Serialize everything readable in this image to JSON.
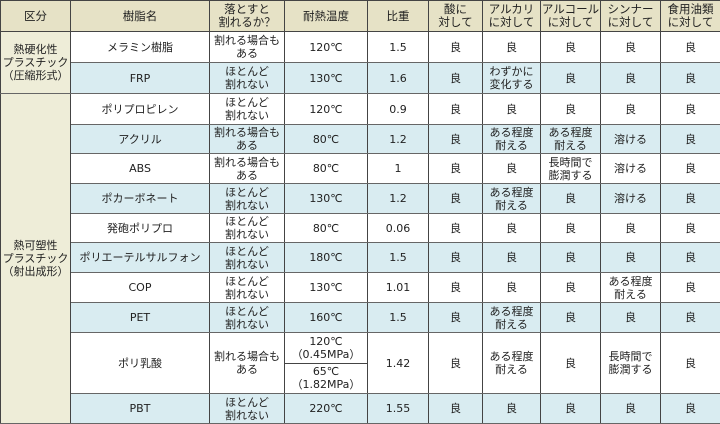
{
  "headers": [
    "区分",
    "樹脂名",
    "落とすと\n割れるか？",
    "耐熱温度",
    "比重",
    "酸に\n対して",
    "アルカリ\nに対して",
    "アルコール\nに対して",
    "シンナー\nに対して",
    "食用油類\nに対して"
  ],
  "categories": [
    {
      "label": "熱硬化性\nプラスチック\n（圧縮形式）"
    },
    {
      "label": "熱可塑性\nプラスチック\n（射出成形）"
    }
  ],
  "rows": [
    {
      "name": "メラミン樹脂",
      "drop": "割れる場合も\nある",
      "temp": "120℃",
      "sg": "1.5",
      "acid": "良",
      "alkali": "良",
      "alcohol": "良",
      "thinner": "良",
      "oil": "良"
    },
    {
      "name": "FRP",
      "drop": "ほとんど\n割れない",
      "temp": "130℃",
      "sg": "1.6",
      "acid": "良",
      "alkali": "わずかに\n変化する",
      "alcohol": "良",
      "thinner": "良",
      "oil": "良"
    },
    {
      "name": "ポリプロピレン",
      "drop": "ほとんど\n割れない",
      "temp": "120℃",
      "sg": "0.9",
      "acid": "良",
      "alkali": "良",
      "alcohol": "良",
      "thinner": "良",
      "oil": "良"
    },
    {
      "name": "アクリル",
      "drop": "割れる場合も\nある",
      "temp": "80℃",
      "sg": "1.2",
      "acid": "良",
      "alkali": "ある程度\n耐える",
      "alcohol": "ある程度\n耐える",
      "thinner": "溶ける",
      "oil": "良"
    },
    {
      "name": "ABS",
      "drop": "割れる場合も\nある",
      "temp": "80℃",
      "sg": "1",
      "acid": "良",
      "alkali": "良",
      "alcohol": "長時間で\n膨潤する",
      "thinner": "溶ける",
      "oil": "良"
    },
    {
      "name": "ポカーボネート",
      "drop": "ほとんど\n割れない",
      "temp": "130℃",
      "sg": "1.2",
      "acid": "良",
      "alkali": "ある程度\n耐える",
      "alcohol": "良",
      "thinner": "溶ける",
      "oil": "良"
    },
    {
      "name": "発砲ポリプロ",
      "drop": "ほとんど\n割れない",
      "temp": "80℃",
      "sg": "0.06",
      "acid": "良",
      "alkali": "良",
      "alcohol": "良",
      "thinner": "良",
      "oil": "良"
    },
    {
      "name": "ポリエーテルサルフォン",
      "drop": "ほとんど\n割れない",
      "temp": "180℃",
      "sg": "1.5",
      "acid": "良",
      "alkali": "良",
      "alcohol": "良",
      "thinner": "良",
      "oil": "良"
    },
    {
      "name": "COP",
      "drop": "ほとんど\n割れない",
      "temp": "130℃",
      "sg": "1.01",
      "acid": "良",
      "alkali": "良",
      "alcohol": "良",
      "thinner": "ある程度\n耐える",
      "oil": "良"
    },
    {
      "name": "PET",
      "drop": "ほとんど\n割れない",
      "temp": "160℃",
      "sg": "1.5",
      "acid": "良",
      "alkali": "ある程度\n耐える",
      "alcohol": "良",
      "thinner": "良",
      "oil": "良"
    },
    {
      "name": "ポリ乳酸",
      "drop": "割れる場合も\nある",
      "temp": "120℃\n（0.45MPa）",
      "temp2": "65℃\n（1.82MPa）",
      "sg": "1.42",
      "acid": "良",
      "alkali": "ある程度\n耐える",
      "alcohol": "良",
      "thinner": "長時間で\n膨潤する",
      "oil": "良"
    },
    {
      "name": "PBT",
      "drop": "ほとんど\n割れない",
      "temp": "220℃",
      "sg": "1.55",
      "acid": "良",
      "alkali": "良",
      "alcohol": "良",
      "thinner": "良",
      "oil": "良"
    }
  ]
}
